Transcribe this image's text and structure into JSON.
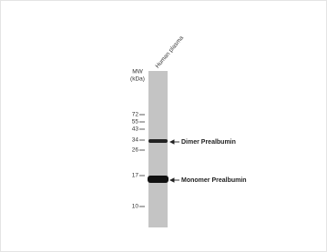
{
  "sample": "Human plasma",
  "mw_label": [
    "MW",
    "(kDa)"
  ],
  "markers": [
    72,
    55,
    43,
    34,
    26,
    17,
    10
  ],
  "bands": [
    "Dimer Prealbumin",
    "Monomer Prealbumin"
  ]
}
